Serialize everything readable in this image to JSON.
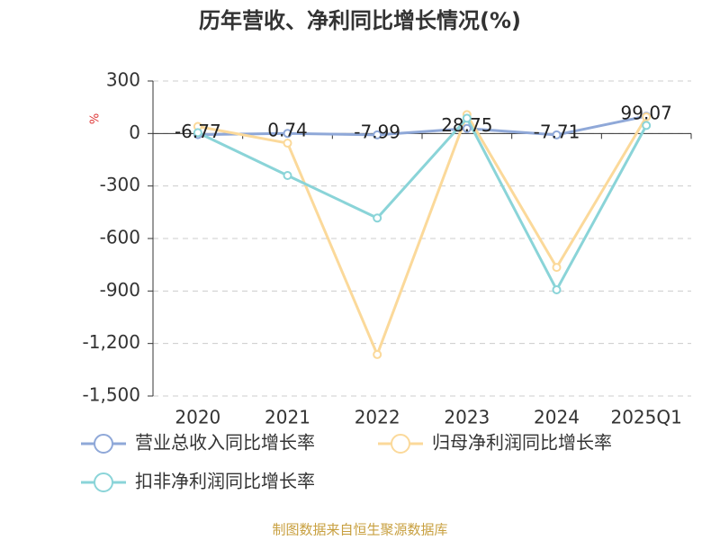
{
  "chart_data": {
    "type": "line",
    "title": "历年营收、净利同比增长情况(%)",
    "y_label": "%",
    "categories": [
      "2020",
      "2021",
      "2022",
      "2023",
      "2024",
      "2025Q1"
    ],
    "series": [
      {
        "name": "营业总收入同比增长率",
        "color": "#8fa8d8",
        "values": [
          -6.77,
          0.74,
          -7.99,
          28.75,
          -7.71,
          99.07
        ],
        "show_labels": true
      },
      {
        "name": "归母净利润同比增长率",
        "color": "#fbd99a",
        "values": [
          40,
          -55,
          -1263,
          108,
          -765,
          95
        ]
      },
      {
        "name": "扣非净利润同比增长率",
        "color": "#8ad4d8",
        "values": [
          5,
          -240,
          -483,
          87,
          -893,
          46
        ]
      }
    ],
    "ylim": [
      -1500,
      300
    ],
    "yticks": [
      {
        "value": -1500,
        "label": "-1,500"
      },
      {
        "value": -1200,
        "label": "-1,200"
      },
      -900,
      -600,
      -300,
      0,
      300
    ],
    "grid": true,
    "source": "制图数据来自恒生聚源数据库"
  }
}
